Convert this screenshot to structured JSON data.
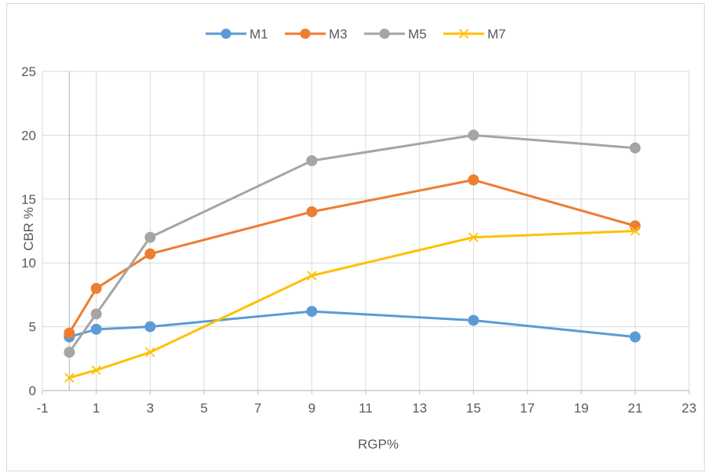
{
  "chart_data": {
    "type": "line",
    "title": "",
    "xlabel": "RGP%",
    "ylabel": "CBR %",
    "xlim": [
      -1,
      23
    ],
    "ylim": [
      0,
      25
    ],
    "x_ticks": [
      "-1",
      "1",
      "3",
      "5",
      "7",
      "9",
      "11",
      "13",
      "15",
      "17",
      "19",
      "21",
      "23"
    ],
    "y_ticks": [
      "0",
      "5",
      "10",
      "15",
      "20",
      "25"
    ],
    "grid": true,
    "legend": "top-center",
    "x": [
      0,
      1,
      3,
      9,
      15,
      21
    ],
    "series": [
      {
        "name": "M1",
        "color": "#5b9bd5",
        "marker": "circle",
        "values": [
          4.2,
          4.8,
          5.0,
          6.2,
          5.5,
          4.2
        ]
      },
      {
        "name": "M3",
        "color": "#ed7d31",
        "marker": "circle",
        "values": [
          4.5,
          8.0,
          10.7,
          14.0,
          16.5,
          12.9
        ]
      },
      {
        "name": "M5",
        "color": "#a5a5a5",
        "marker": "circle",
        "values": [
          3.0,
          6.0,
          12.0,
          18.0,
          20.0,
          19.0
        ]
      },
      {
        "name": "M7",
        "color": "#ffc000",
        "marker": "x",
        "values": [
          1.0,
          1.6,
          3.0,
          9.0,
          12.0,
          12.5
        ]
      }
    ]
  }
}
